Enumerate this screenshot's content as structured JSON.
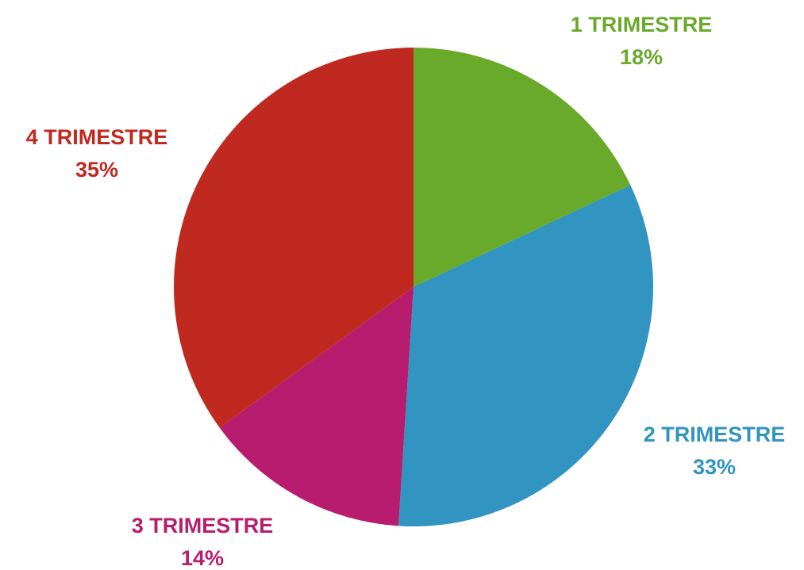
{
  "chart_data": {
    "type": "pie",
    "categories": [
      "1 TRIMESTRE",
      "2 TRIMESTRE",
      "3 TRIMESTRE",
      "4 TRIMESTRE"
    ],
    "values": [
      18,
      33,
      14,
      35
    ],
    "value_labels": [
      "18%",
      "33%",
      "14%",
      "35%"
    ],
    "colors": [
      "#6aaa2a",
      "#3194c1",
      "#b81c6e",
      "#c0291f"
    ]
  }
}
